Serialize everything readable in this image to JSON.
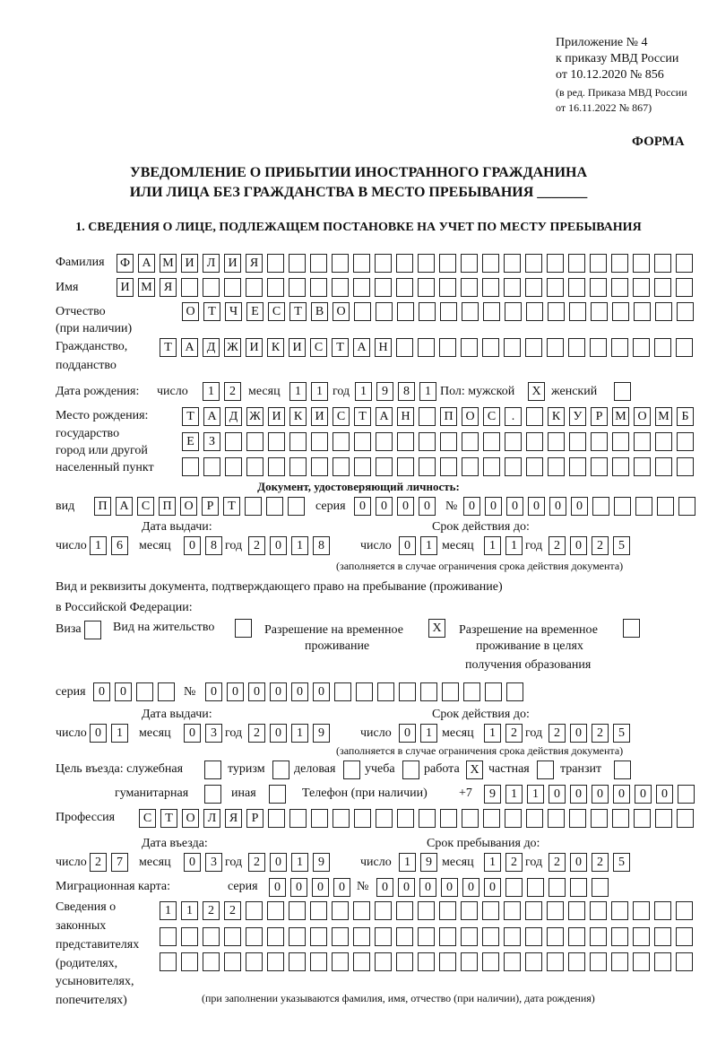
{
  "header": {
    "appendix": "Приложение № 4",
    "order": "к приказу МВД России",
    "order_date": "от 10.12.2020 № 856",
    "edition1": "(в ред. Приказа МВД России",
    "edition2": "от 16.11.2022 № 867)",
    "form": "ФОРМА",
    "title1": "УВЕДОМЛЕНИЕ О ПРИБЫТИИ ИНОСТРАННОГО ГРАЖДАНИНА",
    "title2": "ИЛИ ЛИЦА БЕЗ ГРАЖДАНСТВА В МЕСТО ПРЕБЫВАНИЯ _______",
    "section1": "1. СВЕДЕНИЯ О ЛИЦЕ, ПОДЛЕЖАЩЕМ ПОСТАНОВКЕ НА УЧЕТ ПО МЕСТУ ПРЕБЫВАНИЯ"
  },
  "labels": {
    "surname": "Фамилия",
    "name": "Имя",
    "patronymic": "Отчество",
    "patronymic2": "(при наличии)",
    "citizenship": "Гражданство,",
    "citizenship2": "подданство",
    "birth_date": "Дата рождения:",
    "day": "число",
    "month": "месяц",
    "year": "год",
    "sex": "Пол: мужской",
    "female": "женский",
    "birth_place": "Место рождения:",
    "bp2": "государство",
    "bp3": "город или другой",
    "bp4": "населенный пункт",
    "id_doc": "Документ, удостоверяющий личность:",
    "kind": "вид",
    "series": "серия",
    "number": "№",
    "issue_date": "Дата выдачи:",
    "valid_until": "Срок действия до:",
    "valid_note": "(заполняется в случае ограничения срока действия документа)",
    "stay_doc1": "Вид и реквизиты документа, подтверждающего право на пребывание (проживание)",
    "stay_doc2": "в Российской Федерации:",
    "visa": "Виза",
    "residence": "Вид на жительство",
    "trp1": "Разрешение на временное",
    "trp2": "проживание",
    "trpe1": "Разрешение на временное",
    "trpe2": "проживание в целях",
    "trpe3": "получения образования",
    "purpose": "Цель въезда: служебная",
    "tourism": "туризм",
    "business": "деловая",
    "study": "учеба",
    "work": "работа",
    "private": "частная",
    "transit": "транзит",
    "humanitarian": "гуманитарная",
    "other": "иная",
    "phone": "Телефон (при наличии)",
    "phone_prefix": "+7",
    "profession": "Профессия",
    "entry_date": "Дата въезда:",
    "stay_until": "Срок пребывания до:",
    "migration_card": "Миграционная карта:",
    "rep1": "Сведения о",
    "rep2": "законных",
    "rep3": "представителях",
    "rep4": "(родителях,",
    "rep5": "усыновителях,",
    "rep6": "попечителях)",
    "rep_note": "(при заполнении указываются фамилия, имя, отчество (при наличии), дата рождения)"
  },
  "person": {
    "surname": "ФАМИЛИЯ",
    "name": "ИМЯ",
    "patronymic": "ОТЧЕСТВО",
    "citizenship": "ТАДЖИКИСТАН",
    "birth_day": "12",
    "birth_month": "11",
    "birth_year": "1981",
    "male": "X",
    "female": "",
    "birth_place1": "ТАДЖИКИСТАН ПОС. КУРМОМБ",
    "birth_place2": "ЕЗ",
    "birth_place3": ""
  },
  "id_document": {
    "kind": "ПАСПОРТ",
    "series": "0000",
    "number": "000000",
    "issue_day": "16",
    "issue_month": "08",
    "issue_year": "2018",
    "valid_day": "01",
    "valid_month": "11",
    "valid_year": "2025"
  },
  "stay_document": {
    "visa": "",
    "residence": "",
    "trp": "X",
    "trp_education": "",
    "series": "00",
    "number": "000000",
    "issue_day": "01",
    "issue_month": "03",
    "issue_year": "2019",
    "valid_day": "01",
    "valid_month": "12",
    "valid_year": "2025"
  },
  "purpose": {
    "official": "",
    "tourism": "",
    "business": "",
    "study": "",
    "work": "X",
    "private": "",
    "transit": "",
    "humanitarian": "",
    "other": ""
  },
  "phone": "911000000",
  "profession": "СТОЛЯР",
  "entry": {
    "day": "27",
    "month": "03",
    "year": "2019",
    "until_day": "19",
    "until_month": "12",
    "until_year": "2025"
  },
  "migration_card": {
    "series": "0000",
    "number": "000000"
  },
  "representatives": {
    "row1": "1122",
    "row2": "",
    "row3": ""
  }
}
